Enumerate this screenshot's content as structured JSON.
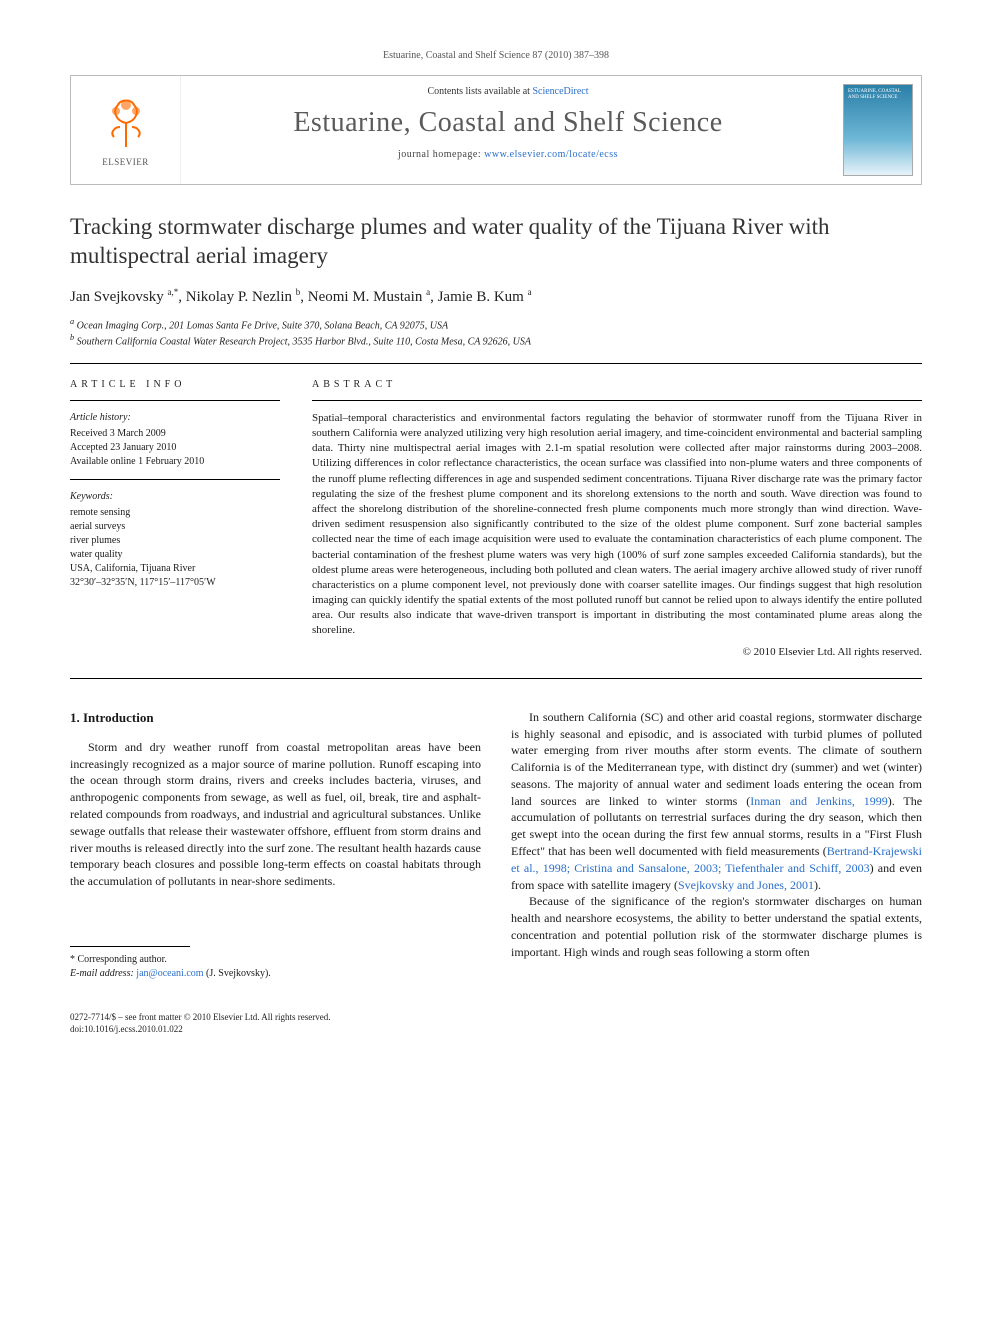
{
  "running_head": "Estuarine, Coastal and Shelf Science 87 (2010) 387–398",
  "header": {
    "publisher": "ELSEVIER",
    "contents_prefix": "Contents lists available at ",
    "contents_link": "ScienceDirect",
    "journal_name": "Estuarine, Coastal and Shelf Science",
    "homepage_prefix": "journal homepage: ",
    "homepage_url": "www.elsevier.com/locate/ecss",
    "cover_title": "ESTUARINE, COASTAL AND SHELF SCIENCE"
  },
  "article": {
    "title": "Tracking stormwater discharge plumes and water quality of the Tijuana River with multispectral aerial imagery",
    "authors_html": "Jan Svejkovsky <sup>a,*</sup>, Nikolay P. Nezlin <sup>b</sup>, Neomi M. Mustain <sup>a</sup>, Jamie B. Kum <sup>a</sup>",
    "affiliations": [
      "a Ocean Imaging Corp., 201 Lomas Santa Fe Drive, Suite 370, Solana Beach, CA 92075, USA",
      "b Southern California Coastal Water Research Project, 3535 Harbor Blvd., Suite 110, Costa Mesa, CA 92626, USA"
    ]
  },
  "info": {
    "heading": "ARTICLE INFO",
    "history_head": "Article history:",
    "history": [
      "Received 3 March 2009",
      "Accepted 23 January 2010",
      "Available online 1 February 2010"
    ],
    "keywords_head": "Keywords:",
    "keywords": [
      "remote sensing",
      "aerial surveys",
      "river plumes",
      "water quality",
      "USA, California, Tijuana River",
      "32°30′–32°35′N, 117°15′–117°05′W"
    ]
  },
  "abstract": {
    "heading": "ABSTRACT",
    "text": "Spatial–temporal characteristics and environmental factors regulating the behavior of stormwater runoff from the Tijuana River in southern California were analyzed utilizing very high resolution aerial imagery, and time-coincident environmental and bacterial sampling data. Thirty nine multispectral aerial images with 2.1-m spatial resolution were collected after major rainstorms during 2003–2008. Utilizing differences in color reflectance characteristics, the ocean surface was classified into non-plume waters and three components of the runoff plume reflecting differences in age and suspended sediment concentrations. Tijuana River discharge rate was the primary factor regulating the size of the freshest plume component and its shorelong extensions to the north and south. Wave direction was found to affect the shorelong distribution of the shoreline-connected fresh plume components much more strongly than wind direction. Wave-driven sediment resuspension also significantly contributed to the size of the oldest plume component. Surf zone bacterial samples collected near the time of each image acquisition were used to evaluate the contamination characteristics of each plume component. The bacterial contamination of the freshest plume waters was very high (100% of surf zone samples exceeded California standards), but the oldest plume areas were heterogeneous, including both polluted and clean waters. The aerial imagery archive allowed study of river runoff characteristics on a plume component level, not previously done with coarser satellite images. Our findings suggest that high resolution imaging can quickly identify the spatial extents of the most polluted runoff but cannot be relied upon to always identify the entire polluted area. Our results also indicate that wave-driven transport is important in distributing the most contaminated plume areas along the shoreline.",
    "copyright": "© 2010 Elsevier Ltd. All rights reserved."
  },
  "body": {
    "section1_head": "1. Introduction",
    "p1": "Storm and dry weather runoff from coastal metropolitan areas have been increasingly recognized as a major source of marine pollution. Runoff escaping into the ocean through storm drains, rivers and creeks includes bacteria, viruses, and anthropogenic components from sewage, as well as fuel, oil, break, tire and asphalt-related compounds from roadways, and industrial and agricultural substances. Unlike sewage outfalls that release their wastewater offshore, effluent from storm drains and river mouths is released directly into the surf zone. The resultant health hazards cause temporary beach closures and possible long-term effects on coastal habitats through the accumulation of pollutants in near-shore sediments.",
    "p2a": "In southern California (SC) and other arid coastal regions, stormwater discharge is highly seasonal and episodic, and is associated with turbid plumes of polluted water emerging from river mouths after storm events. The climate of southern California is of the Mediterranean type, with distinct dry (summer) and wet (winter) seasons. The majority of annual water and sediment loads entering the ocean from land sources are linked to winter storms (",
    "cite1": "Inman and Jenkins, 1999",
    "p2b": "). The accumulation of pollutants on terrestrial surfaces during the dry season, which then get swept into the ocean during the first few annual storms, results in a \"First Flush Effect\" that has been well documented with field measurements (",
    "cite2": "Bertrand-Krajewski et al., 1998; Cristina and Sansalone, 2003; Tiefenthaler and Schiff, 2003",
    "p2c": ") and even from space with satellite imagery (",
    "cite3": "Svejkovsky and Jones, 2001",
    "p2d": ").",
    "p3": "Because of the significance of the region's stormwater discharges on human health and nearshore ecosystems, the ability to better understand the spatial extents, concentration and potential pollution risk of the stormwater discharge plumes is important. High winds and rough seas following a storm often"
  },
  "footnote": {
    "corr": "* Corresponding author.",
    "email_label": "E-mail address: ",
    "email": "jan@oceani.com",
    "email_who": " (J. Svejkovsky)."
  },
  "copyright_footer": {
    "line1": "0272-7714/$ – see front matter © 2010 Elsevier Ltd. All rights reserved.",
    "line2": "doi:10.1016/j.ecss.2010.01.022"
  },
  "colors": {
    "link": "#2a6fc9",
    "text": "#1a1a1a",
    "header_gray": "#5a5a5a",
    "elsevier_orange": "#ff6a00"
  }
}
